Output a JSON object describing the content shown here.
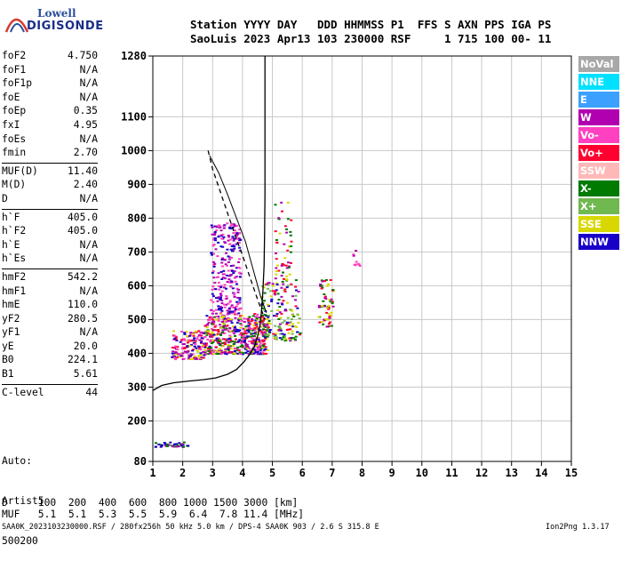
{
  "logo": {
    "line1": "Lowell",
    "line2": "DIGISONDE"
  },
  "header": {
    "row1": "Station YYYY DAY   DDD HHMMSS P1  FFS S AXN PPS IGA PS",
    "row2": "SaoLuis 2023 Apr13 103 230000 RSF     1 715 100 00- 11"
  },
  "params": [
    [
      {
        "k": "foF2",
        "v": "4.750"
      },
      {
        "k": "foF1",
        "v": "N/A"
      },
      {
        "k": "foF1p",
        "v": "N/A"
      },
      {
        "k": "foE",
        "v": "N/A"
      },
      {
        "k": "foEp",
        "v": "0.35"
      },
      {
        "k": "fxI",
        "v": "4.95"
      },
      {
        "k": "foEs",
        "v": "N/A"
      },
      {
        "k": "fmin",
        "v": "2.70"
      }
    ],
    [
      {
        "k": "MUF(D)",
        "v": "11.40"
      },
      {
        "k": "M(D)",
        "v": "2.40"
      },
      {
        "k": "D",
        "v": "N/A"
      }
    ],
    [
      {
        "k": "h`F",
        "v": "405.0"
      },
      {
        "k": "h`F2",
        "v": "405.0"
      },
      {
        "k": "h`E",
        "v": "N/A"
      },
      {
        "k": "h`Es",
        "v": "N/A"
      }
    ],
    [
      {
        "k": "hmF2",
        "v": "542.2"
      },
      {
        "k": "hmF1",
        "v": "N/A"
      },
      {
        "k": "hmE",
        "v": "110.0"
      },
      {
        "k": "yF2",
        "v": "280.5"
      },
      {
        "k": "yF1",
        "v": "N/A"
      },
      {
        "k": "yE",
        "v": "20.0"
      },
      {
        "k": "B0",
        "v": "224.1"
      },
      {
        "k": "B1",
        "v": "5.61"
      }
    ],
    [
      {
        "k": "C-level",
        "v": "44"
      }
    ]
  ],
  "auto": {
    "label": "Auto:",
    "name": "Artist5",
    "code": "500200"
  },
  "legend": [
    {
      "label": "NoVal",
      "color": "#a8a8a8"
    },
    {
      "label": "NNE",
      "color": "#00e0ff"
    },
    {
      "label": "E",
      "color": "#3ca0ff"
    },
    {
      "label": "W",
      "color": "#b000b0"
    },
    {
      "label": "Vo-",
      "color": "#ff40c0"
    },
    {
      "label": "Vo+",
      "color": "#ff0030"
    },
    {
      "label": "SSW",
      "color": "#ffb8b8"
    },
    {
      "label": "X-",
      "color": "#007a00"
    },
    {
      "label": "X+",
      "color": "#70b850"
    },
    {
      "label": "SSE",
      "color": "#d8d800"
    },
    {
      "label": "NNW",
      "color": "#1800c8"
    }
  ],
  "bottom": {
    "d_row": "D     100  200  400  600  800 1000 1500 3000 [km]",
    "muf_row": "MUF   5.1  5.1  5.3  5.5  5.9  6.4  7.8 11.4 [MHz]",
    "footer": "SAA0K_2023103230000.RSF / 280fx256h 50 kHz 5.0 km / DPS-4 SAA0K 903 / 2.6 S 315.8 E",
    "version": "Ion2Png 1.3.17"
  },
  "chart_data": {
    "type": "scatter",
    "x_ticks": [
      "1",
      "2",
      "3",
      "4",
      "5",
      "6",
      "7",
      "8",
      "9",
      "10",
      "11",
      "12",
      "13",
      "14",
      "15"
    ],
    "y_ticks": [
      "80",
      "200",
      "300",
      "400",
      "500",
      "600",
      "700",
      "800",
      "900",
      "1000",
      "1100",
      "1280"
    ],
    "xlim": [
      1,
      15
    ],
    "ylim": [
      80,
      1280
    ],
    "grid": true,
    "traces": {
      "profile": [
        [
          1.0,
          290
        ],
        [
          1.3,
          305
        ],
        [
          1.7,
          313
        ],
        [
          2.2,
          318
        ],
        [
          2.7,
          322
        ],
        [
          3.1,
          327
        ],
        [
          3.5,
          338
        ],
        [
          3.8,
          352
        ],
        [
          4.05,
          375
        ],
        [
          4.25,
          398
        ],
        [
          4.4,
          420
        ],
        [
          4.5,
          450
        ],
        [
          4.58,
          480
        ],
        [
          4.63,
          520
        ],
        [
          4.68,
          580
        ],
        [
          4.72,
          660
        ],
        [
          4.74,
          760
        ],
        [
          4.75,
          870
        ],
        [
          4.75,
          1280
        ]
      ],
      "dashed": [
        [
          2.85,
          1000
        ],
        [
          3.0,
          945
        ],
        [
          3.25,
          880
        ],
        [
          3.5,
          815
        ],
        [
          3.75,
          750
        ],
        [
          4.0,
          690
        ],
        [
          4.25,
          625
        ],
        [
          4.5,
          560
        ],
        [
          4.75,
          500
        ]
      ],
      "solid_x_branch": [
        [
          2.9,
          985
        ],
        [
          3.2,
          935
        ],
        [
          3.5,
          870
        ],
        [
          3.8,
          800
        ],
        [
          4.1,
          730
        ],
        [
          4.35,
          650
        ],
        [
          4.6,
          570
        ],
        [
          4.8,
          520
        ]
      ]
    },
    "scatter_clusters": [
      {
        "x": [
          2.7,
          4.8
        ],
        "y": [
          400,
          520
        ],
        "n": 520,
        "colors": [
          "W",
          "Vo-",
          "Vo+",
          "NNW",
          "SSE",
          "X-"
        ]
      },
      {
        "x": [
          1.6,
          2.7
        ],
        "y": [
          385,
          470
        ],
        "n": 160,
        "colors": [
          "W",
          "Vo+",
          "NNW",
          "SSE",
          "Vo-"
        ]
      },
      {
        "x": [
          2.9,
          3.9
        ],
        "y": [
          520,
          790
        ],
        "n": 260,
        "colors": [
          "W",
          "Vo-",
          "NNW"
        ]
      },
      {
        "x": [
          4.6,
          5.9
        ],
        "y": [
          440,
          620
        ],
        "n": 170,
        "colors": [
          "SSE",
          "X-",
          "Vo+",
          "W",
          "NNW",
          "X+"
        ]
      },
      {
        "x": [
          5.0,
          5.6
        ],
        "y": [
          620,
          850
        ],
        "n": 50,
        "colors": [
          "W",
          "SSE",
          "X-",
          "Vo+"
        ]
      },
      {
        "x": [
          6.5,
          7.0
        ],
        "y": [
          480,
          620
        ],
        "n": 60,
        "colors": [
          "Vo+",
          "W",
          "SSE",
          "X-"
        ]
      },
      {
        "x": [
          7.6,
          7.9
        ],
        "y": [
          660,
          720
        ],
        "n": 10,
        "colors": [
          "W",
          "Vo-"
        ]
      },
      {
        "x": [
          1.0,
          2.2
        ],
        "y": [
          125,
          140
        ],
        "n": 40,
        "colors": [
          "NNW",
          "W",
          "X-"
        ]
      }
    ]
  }
}
